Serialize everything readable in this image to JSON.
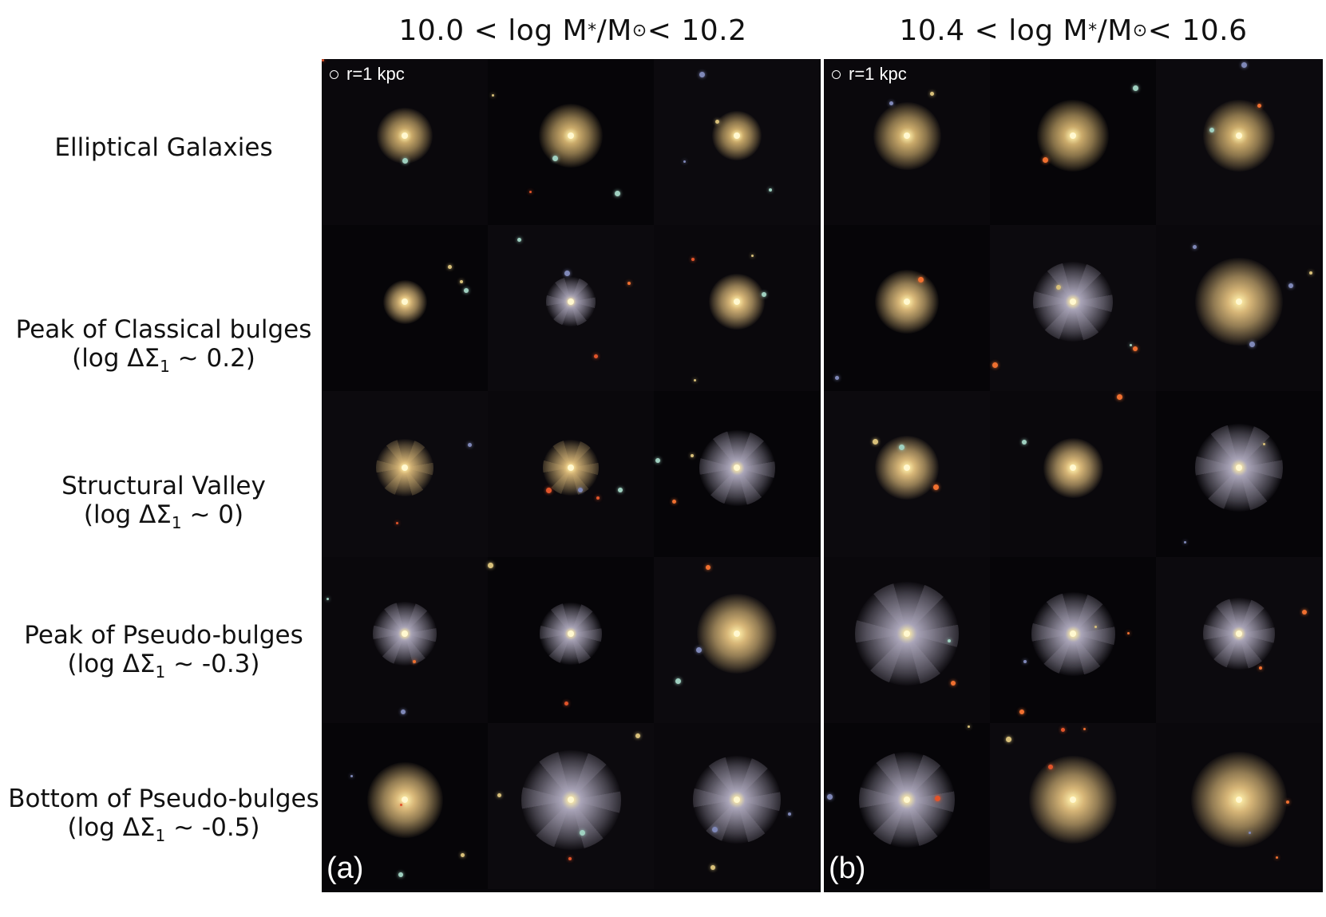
{
  "headers": {
    "a": {
      "prefix": "10.0 < log M",
      "star": "*",
      "mid": "/M",
      "sun": "⊙",
      "suffix": " < 10.2"
    },
    "b": {
      "prefix": "10.4 < log M",
      "star": "*",
      "mid": "/M",
      "sun": "⊙",
      "suffix": " < 10.6"
    }
  },
  "rows": [
    {
      "line1": "Elliptical Galaxies",
      "line2": ""
    },
    {
      "line1": "Peak of Classical bulges",
      "line2_pre": "(log ΔΣ",
      "line2_sub": "1",
      "line2_post": " ∼ 0.2)"
    },
    {
      "line1": "Structural Valley",
      "line2_pre": "(log ΔΣ",
      "line2_sub": "1",
      "line2_post": " ∼ 0)"
    },
    {
      "line1": "Peak of Pseudo-bulges",
      "line2_pre": "(log ΔΣ",
      "line2_sub": "1",
      "line2_post": " ∼ -0.3)"
    },
    {
      "line1": "Bottom of Pseudo-bulges",
      "line2_pre": "(log ΔΣ",
      "line2_sub": "1",
      "line2_post": " ∼ -0.5)"
    }
  ],
  "panels": {
    "a": {
      "scale_label": "r=1 kpc",
      "letter": "(a)"
    },
    "b": {
      "scale_label": "r=1 kpc",
      "letter": "(b)"
    }
  },
  "colors": {
    "elliptical": "#c9a96a",
    "bulge": "#d6b577",
    "disk": "#a9a4b8",
    "core": "#fff2b0",
    "background": "#07060a"
  }
}
